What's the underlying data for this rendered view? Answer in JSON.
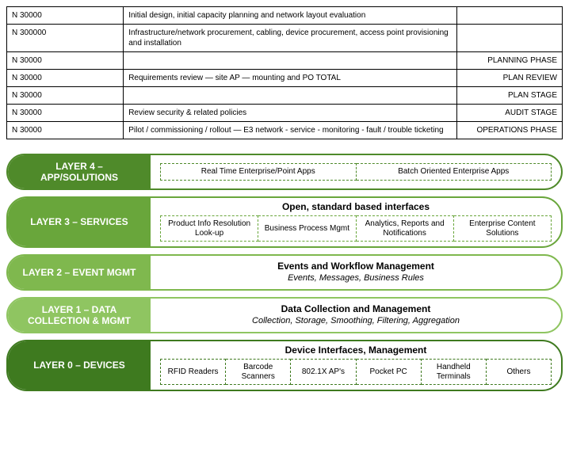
{
  "table": {
    "rows": [
      {
        "c1": "N 30000",
        "c2": "Initial design, initial capacity planning and network layout evaluation",
        "c3": ""
      },
      {
        "c1": "N 300000",
        "c2": "Infrastructure/network procurement, cabling, device procurement, access point provisioning and installation",
        "c3": ""
      },
      {
        "c1": "N 30000",
        "c2": "",
        "c3": "PLANNING PHASE"
      },
      {
        "c1": "N 30000",
        "c2": "Requirements review — site AP — mounting and PO  TOTAL",
        "c3": "PLAN  REVIEW"
      },
      {
        "c1": "N 30000",
        "c2": "",
        "c3": "PLAN  STAGE"
      },
      {
        "c1": "N 30000",
        "c2": "Review security & related policies",
        "c3": "AUDIT STAGE"
      },
      {
        "c1": "N 30000",
        "c2": "Pilot / commissioning / rollout — E3  network - service - monitoring - fault / trouble ticketing",
        "c3": "OPERATIONS  PHASE"
      }
    ]
  },
  "diagram": {
    "layers": [
      {
        "label": "LAYER 4 – APP/SOLUTIONS",
        "border_color": "#4f8a2a",
        "label_bg": "#4f8a2a",
        "cells": [
          "Real Time Enterprise/Point Apps",
          "Batch Oriented Enterprise Apps"
        ],
        "cell_border": "#4f8a2a"
      },
      {
        "label": "LAYER 3 – SERVICES",
        "border_color": "#69a63b",
        "label_bg": "#69a63b",
        "heading": "Open, standard based interfaces",
        "cells": [
          "Product Info Resolution Look-up",
          "Business Process Mgmt",
          "Analytics, Reports and Notifications",
          "Enterprise Content Solutions"
        ],
        "cell_border": "#69a63b"
      },
      {
        "label": "LAYER 2 – EVENT MGMT",
        "border_color": "#7fb84e",
        "label_bg": "#7fb84e",
        "heading": "Events and Workflow Management",
        "sub": "Events, Messages, Business Rules"
      },
      {
        "label": "LAYER 1 – DATA COLLECTION & MGMT",
        "border_color": "#8fc561",
        "label_bg": "#8fc561",
        "heading": "Data Collection and Management",
        "sub": "Collection, Storage, Smoothing, Filtering, Aggregation"
      },
      {
        "label": "LAYER 0 – DEVICES",
        "border_color": "#3e7a1f",
        "label_bg": "#3e7a1f",
        "heading": "Device Interfaces, Management",
        "cells": [
          "RFID Readers",
          "Barcode Scanners",
          "802.1X AP's",
          "Pocket PC",
          "Handheld Terminals",
          "Others"
        ],
        "cell_border": "#3e7a1f"
      }
    ]
  }
}
